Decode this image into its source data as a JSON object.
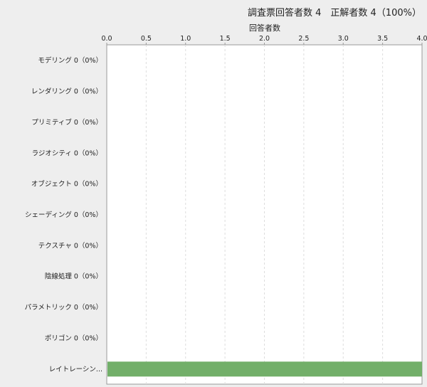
{
  "header": {
    "title": "調査票回答者数 4　正解者数 4（100%）"
  },
  "chart_data": {
    "type": "bar",
    "orientation": "horizontal",
    "title": "調査票回答者数 4　正解者数 4（100%）",
    "xlabel": "回答者数",
    "ylabel": "",
    "xlim": [
      0,
      4.0
    ],
    "xticks": [
      "0.0",
      "0.5",
      "1.0",
      "1.5",
      "2.0",
      "2.5",
      "3.0",
      "3.5",
      "4.0"
    ],
    "grid": true,
    "categories": [
      "モデリング 0（0%）",
      "レンダリング 0（0%）",
      "プリミティブ 0（0%）",
      "ラジオシティ 0（0%）",
      "オブジェクト 0（0%）",
      "シェーディング 0（0%）",
      "テクスチャ 0（0%）",
      "陰線処理 0（0%）",
      "パラメトリック 0（0%）",
      "ポリゴン 0（0%）",
      "レイトレーシン..."
    ],
    "values": [
      0,
      0,
      0,
      0,
      0,
      0,
      0,
      0,
      0,
      0,
      4
    ],
    "bar_color": "#72af69"
  }
}
